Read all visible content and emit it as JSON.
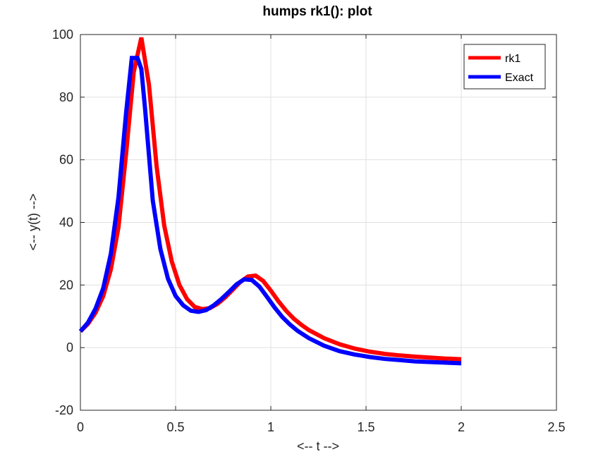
{
  "chart_data": {
    "type": "line",
    "title": "humps rk1(): plot",
    "xlabel": "<-- t -->",
    "ylabel": "<-- y(t) -->",
    "xlim": [
      0,
      2.5
    ],
    "ylim": [
      -20,
      100
    ],
    "xticks": [
      0,
      0.5,
      1,
      1.5,
      2,
      2.5
    ],
    "xtick_labels": [
      "0",
      "0.5",
      "1",
      "1.5",
      "2",
      "2.5"
    ],
    "yticks": [
      -20,
      0,
      20,
      40,
      60,
      80,
      100
    ],
    "ytick_labels": [
      "-20",
      "0",
      "20",
      "40",
      "60",
      "80",
      "100"
    ],
    "grid": true,
    "legend_position": "top-right",
    "series": [
      {
        "name": "rk1",
        "color": "#ff0000",
        "x": [
          0,
          0.04,
          0.08,
          0.12,
          0.16,
          0.2,
          0.24,
          0.28,
          0.32,
          0.36,
          0.4,
          0.44,
          0.48,
          0.52,
          0.56,
          0.6,
          0.64,
          0.68,
          0.72,
          0.76,
          0.8,
          0.84,
          0.88,
          0.92,
          0.96,
          1.0,
          1.04,
          1.08,
          1.12,
          1.16,
          1.2,
          1.28,
          1.36,
          1.44,
          1.52,
          1.6,
          1.68,
          1.76,
          1.84,
          1.92,
          2.0
        ],
        "values": [
          5.2,
          7.6,
          11.2,
          16.5,
          25.0,
          38.5,
          62.0,
          88.0,
          99.0,
          84.0,
          58.0,
          39.0,
          27.5,
          20.0,
          15.5,
          13.0,
          12.3,
          12.6,
          14.0,
          16.0,
          18.5,
          21.0,
          22.7,
          23.0,
          21.3,
          18.2,
          14.8,
          11.8,
          9.3,
          7.3,
          5.6,
          3.0,
          1.1,
          -0.3,
          -1.3,
          -2.0,
          -2.5,
          -2.9,
          -3.2,
          -3.5,
          -3.7
        ]
      },
      {
        "name": "Exact",
        "color": "#0000ff",
        "x": [
          0,
          0.04,
          0.08,
          0.12,
          0.16,
          0.2,
          0.24,
          0.27,
          0.3,
          0.32,
          0.34,
          0.38,
          0.42,
          0.46,
          0.5,
          0.54,
          0.58,
          0.62,
          0.66,
          0.7,
          0.74,
          0.78,
          0.82,
          0.86,
          0.9,
          0.94,
          0.98,
          1.02,
          1.06,
          1.1,
          1.14,
          1.2,
          1.28,
          1.36,
          1.44,
          1.52,
          1.6,
          1.68,
          1.76,
          1.84,
          1.92,
          2.0
        ],
        "values": [
          5.2,
          8.0,
          12.5,
          19.0,
          30.0,
          48.0,
          75.0,
          92.5,
          92.5,
          89.0,
          76.0,
          47.0,
          31.5,
          22.0,
          16.5,
          13.5,
          11.8,
          11.4,
          12.0,
          13.5,
          15.5,
          17.8,
          20.2,
          21.8,
          21.6,
          19.5,
          16.2,
          12.8,
          9.8,
          7.4,
          5.4,
          3.0,
          0.6,
          -1.1,
          -2.2,
          -3.0,
          -3.6,
          -4.0,
          -4.4,
          -4.6,
          -4.8,
          -5.0
        ]
      }
    ]
  }
}
